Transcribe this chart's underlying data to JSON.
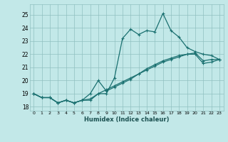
{
  "xlabel": "Humidex (Indice chaleur)",
  "bg_color": "#c2e8e8",
  "grid_color": "#90c0c0",
  "line_color": "#1a7070",
  "xlim": [
    -0.5,
    23.5
  ],
  "ylim": [
    17.7,
    25.8
  ],
  "yticks": [
    18,
    19,
    20,
    21,
    22,
    23,
    24,
    25
  ],
  "xticks": [
    0,
    1,
    2,
    3,
    4,
    5,
    6,
    7,
    8,
    9,
    10,
    11,
    12,
    13,
    14,
    15,
    16,
    17,
    18,
    19,
    20,
    21,
    22,
    23
  ],
  "line1_x": [
    0,
    1,
    2,
    3,
    4,
    5,
    6,
    7,
    8,
    9,
    10,
    11,
    12,
    13,
    14,
    15,
    16,
    17,
    18,
    19,
    20,
    21,
    22,
    23
  ],
  "line1_y": [
    19.0,
    18.7,
    18.7,
    18.3,
    18.5,
    18.3,
    18.5,
    18.5,
    19.0,
    19.0,
    20.2,
    23.2,
    23.9,
    23.5,
    23.8,
    23.7,
    25.1,
    23.8,
    23.3,
    22.5,
    22.2,
    22.0,
    21.9,
    21.6
  ],
  "line2_x": [
    0,
    1,
    2,
    3,
    4,
    5,
    6,
    7,
    8,
    9,
    10,
    11,
    12,
    13,
    14,
    15,
    16,
    17,
    18,
    19,
    20,
    21,
    22,
    23
  ],
  "line2_y": [
    19.0,
    18.7,
    18.7,
    18.3,
    18.5,
    18.3,
    18.5,
    19.0,
    20.0,
    19.2,
    19.5,
    19.8,
    20.1,
    20.5,
    20.9,
    21.2,
    21.5,
    21.7,
    21.9,
    22.0,
    22.1,
    21.5,
    21.6,
    21.6
  ],
  "line3_x": [
    0,
    1,
    2,
    3,
    4,
    5,
    6,
    7,
    8,
    9,
    10,
    11,
    12,
    13,
    14,
    15,
    16,
    17,
    18,
    19,
    20,
    21,
    22,
    23
  ],
  "line3_y": [
    19.0,
    18.7,
    18.7,
    18.3,
    18.5,
    18.3,
    18.5,
    18.6,
    19.0,
    19.3,
    19.6,
    19.9,
    20.2,
    20.5,
    20.8,
    21.1,
    21.4,
    21.6,
    21.8,
    22.0,
    22.0,
    21.3,
    21.4,
    21.6
  ]
}
